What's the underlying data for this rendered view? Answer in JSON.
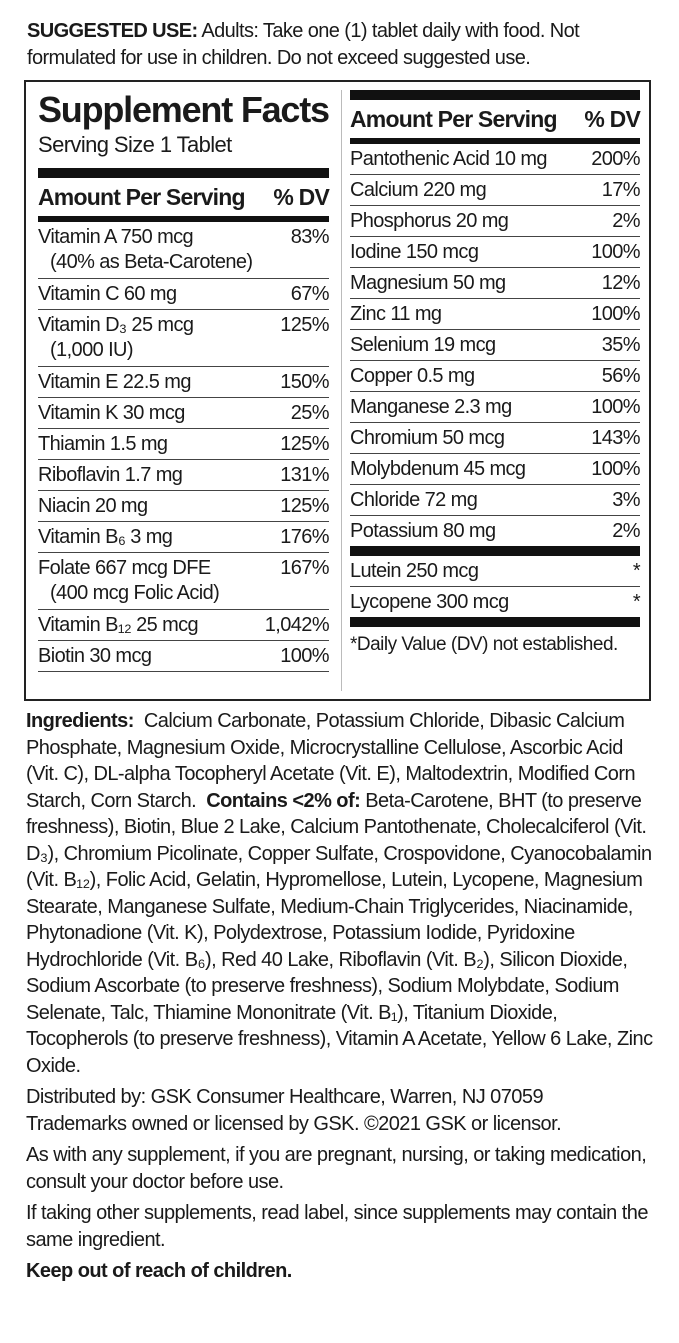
{
  "suggested_use": {
    "label": "SUGGESTED USE:",
    "text": "Adults: Take one (1) tablet daily with food. Not formulated for use in children. Do not exceed suggested use."
  },
  "supplement_facts": {
    "title": "Supplement Facts",
    "serving_size": "Serving Size 1 Tablet",
    "amount_header": "Amount Per Serving",
    "dv_header": "% DV",
    "left_rows": [
      {
        "name": "Vitamin A 750 mcg",
        "detail": "(40% as Beta-Carotene)",
        "dv": "83%"
      },
      {
        "name": "Vitamin C 60 mg",
        "dv": "67%"
      },
      {
        "name": "Vitamin D₃ 25 mcg",
        "detail": "(1,000 IU)",
        "dv": "125%"
      },
      {
        "name": "Vitamin E  22.5 mg",
        "dv": "150%"
      },
      {
        "name": "Vitamin K 30 mcg",
        "dv": "25%"
      },
      {
        "name": "Thiamin 1.5 mg",
        "dv": "125%"
      },
      {
        "name": "Riboflavin 1.7 mg",
        "dv": "131%"
      },
      {
        "name": "Niacin 20 mg",
        "dv": "125%"
      },
      {
        "name": "Vitamin B₆ 3 mg",
        "dv": "176%"
      },
      {
        "name": "Folate 667 mcg DFE",
        "detail": "(400 mcg Folic Acid)",
        "dv": "167%"
      },
      {
        "name": "Vitamin B₁₂ 25 mcg",
        "dv": "1,042%"
      },
      {
        "name": "Biotin 30 mcg",
        "dv": "100%"
      }
    ],
    "right_rows": [
      {
        "name": "Pantothenic Acid 10 mg",
        "dv": "200%"
      },
      {
        "name": "Calcium 220 mg",
        "dv": "17%"
      },
      {
        "name": "Phosphorus 20 mg",
        "dv": "2%"
      },
      {
        "name": "Iodine 150 mcg",
        "dv": "100%"
      },
      {
        "name": "Magnesium 50 mg",
        "dv": "12%"
      },
      {
        "name": "Zinc 11 mg",
        "dv": "100%"
      },
      {
        "name": "Selenium 19 mcg",
        "dv": "35%"
      },
      {
        "name": "Copper 0.5 mg",
        "dv": "56%"
      },
      {
        "name": "Manganese 2.3 mg",
        "dv": "100%"
      },
      {
        "name": "Chromium 50 mcg",
        "dv": "143%"
      },
      {
        "name": "Molybdenum 45 mcg",
        "dv": "100%"
      },
      {
        "name": "Chloride 72 mg",
        "dv": "3%"
      },
      {
        "name": "Potassium 80 mg",
        "dv": "2%"
      }
    ],
    "other_rows": [
      {
        "name": "Lutein 250 mcg",
        "dv": "*"
      },
      {
        "name": "Lycopene 300 mcg",
        "dv": "*"
      }
    ],
    "footnote": "*Daily Value (DV) not established."
  },
  "ingredients": {
    "label": "Ingredients:",
    "text": "Calcium Carbonate, Potassium Chloride, Dibasic Calcium Phosphate, Magnesium Oxide, Microcrystalline Cellulose, Ascorbic Acid (Vit. C), DL-alpha Tocopheryl Acetate (Vit. E), Maltodextrin, Modified Corn Starch, Corn Starch.",
    "contains_label": "Contains <2% of:",
    "contains_text": "Beta-Carotene, BHT (to preserve freshness), Biotin, Blue 2 Lake, Calcium Pantothenate, Cholecalciferol (Vit. D₃), Chromium Picolinate, Copper Sulfate, Crospovidone, Cyanocobalamin (Vit. B₁₂), Folic Acid, Gelatin, Hypromellose, Lutein, Lycopene, Magnesium Stearate, Manganese Sulfate, Medium-Chain Triglycerides, Niacinamide, Phytonadione (Vit. K), Polydextrose, Potassium Iodide, Pyridoxine Hydrochloride (Vit. B₆), Red 40 Lake, Riboflavin (Vit. B₂), Silicon Dioxide, Sodium Ascorbate (to preserve freshness), Sodium Molybdate, Sodium Selenate, Talc, Thiamine Mononitrate (Vit. B₁), Titanium Dioxide, Tocopherols (to preserve freshness), Vitamin A Acetate, Yellow 6 Lake, Zinc Oxide."
  },
  "distributor": [
    "Distributed by: GSK Consumer Healthcare, Warren, NJ 07059",
    "Trademarks owned or licensed by GSK. ©2021 GSK or licensor."
  ],
  "notes": [
    "As with any supplement, if you are pregnant, nursing, or taking medication, consult your doctor before use.",
    "If taking other supplements, read label, since supplements may contain the same ingredient."
  ],
  "warning": "Keep out of reach of children."
}
